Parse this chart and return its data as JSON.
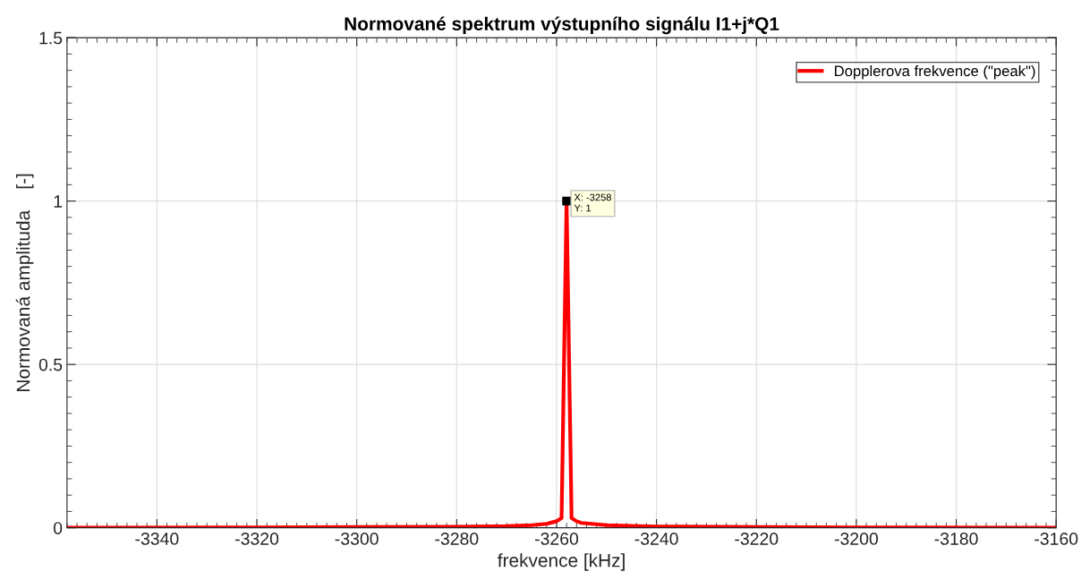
{
  "chart_data": {
    "type": "line",
    "title": "Normované spektrum výstupního signálu I1+j*Q1",
    "xlabel": "frekvence [kHz]",
    "ylabel": "Normovaná amplituda    [-]",
    "x": [
      -3358,
      -3320,
      -3300,
      -3280,
      -3270,
      -3265,
      -3262,
      -3260,
      -3259,
      -3258,
      -3257,
      -3256,
      -3255,
      -3250,
      -3240,
      -3220,
      -3200,
      -3160
    ],
    "series": [
      {
        "name": "Dopplerova frekvence (\"peak\")",
        "color": "#ff0000",
        "values": [
          0,
          0.001,
          0.002,
          0.003,
          0.005,
          0.008,
          0.012,
          0.02,
          0.03,
          1,
          0.03,
          0.02,
          0.015,
          0.008,
          0.004,
          0.002,
          0.001,
          0
        ]
      }
    ],
    "annotations": [
      {
        "text": "X: -3258\nY: 1",
        "x": -3258,
        "y": 1
      }
    ],
    "xlim": [
      -3358,
      -3160
    ],
    "xticks": [
      -3340,
      -3320,
      -3300,
      -3280,
      -3260,
      -3240,
      -3220,
      -3200,
      -3180,
      -3160
    ],
    "ylim": [
      0,
      1.5
    ],
    "yticks": [
      0,
      0.5,
      1,
      1.5
    ],
    "grid": true,
    "legend": "top right",
    "marker": "none",
    "line_style": "solid"
  }
}
